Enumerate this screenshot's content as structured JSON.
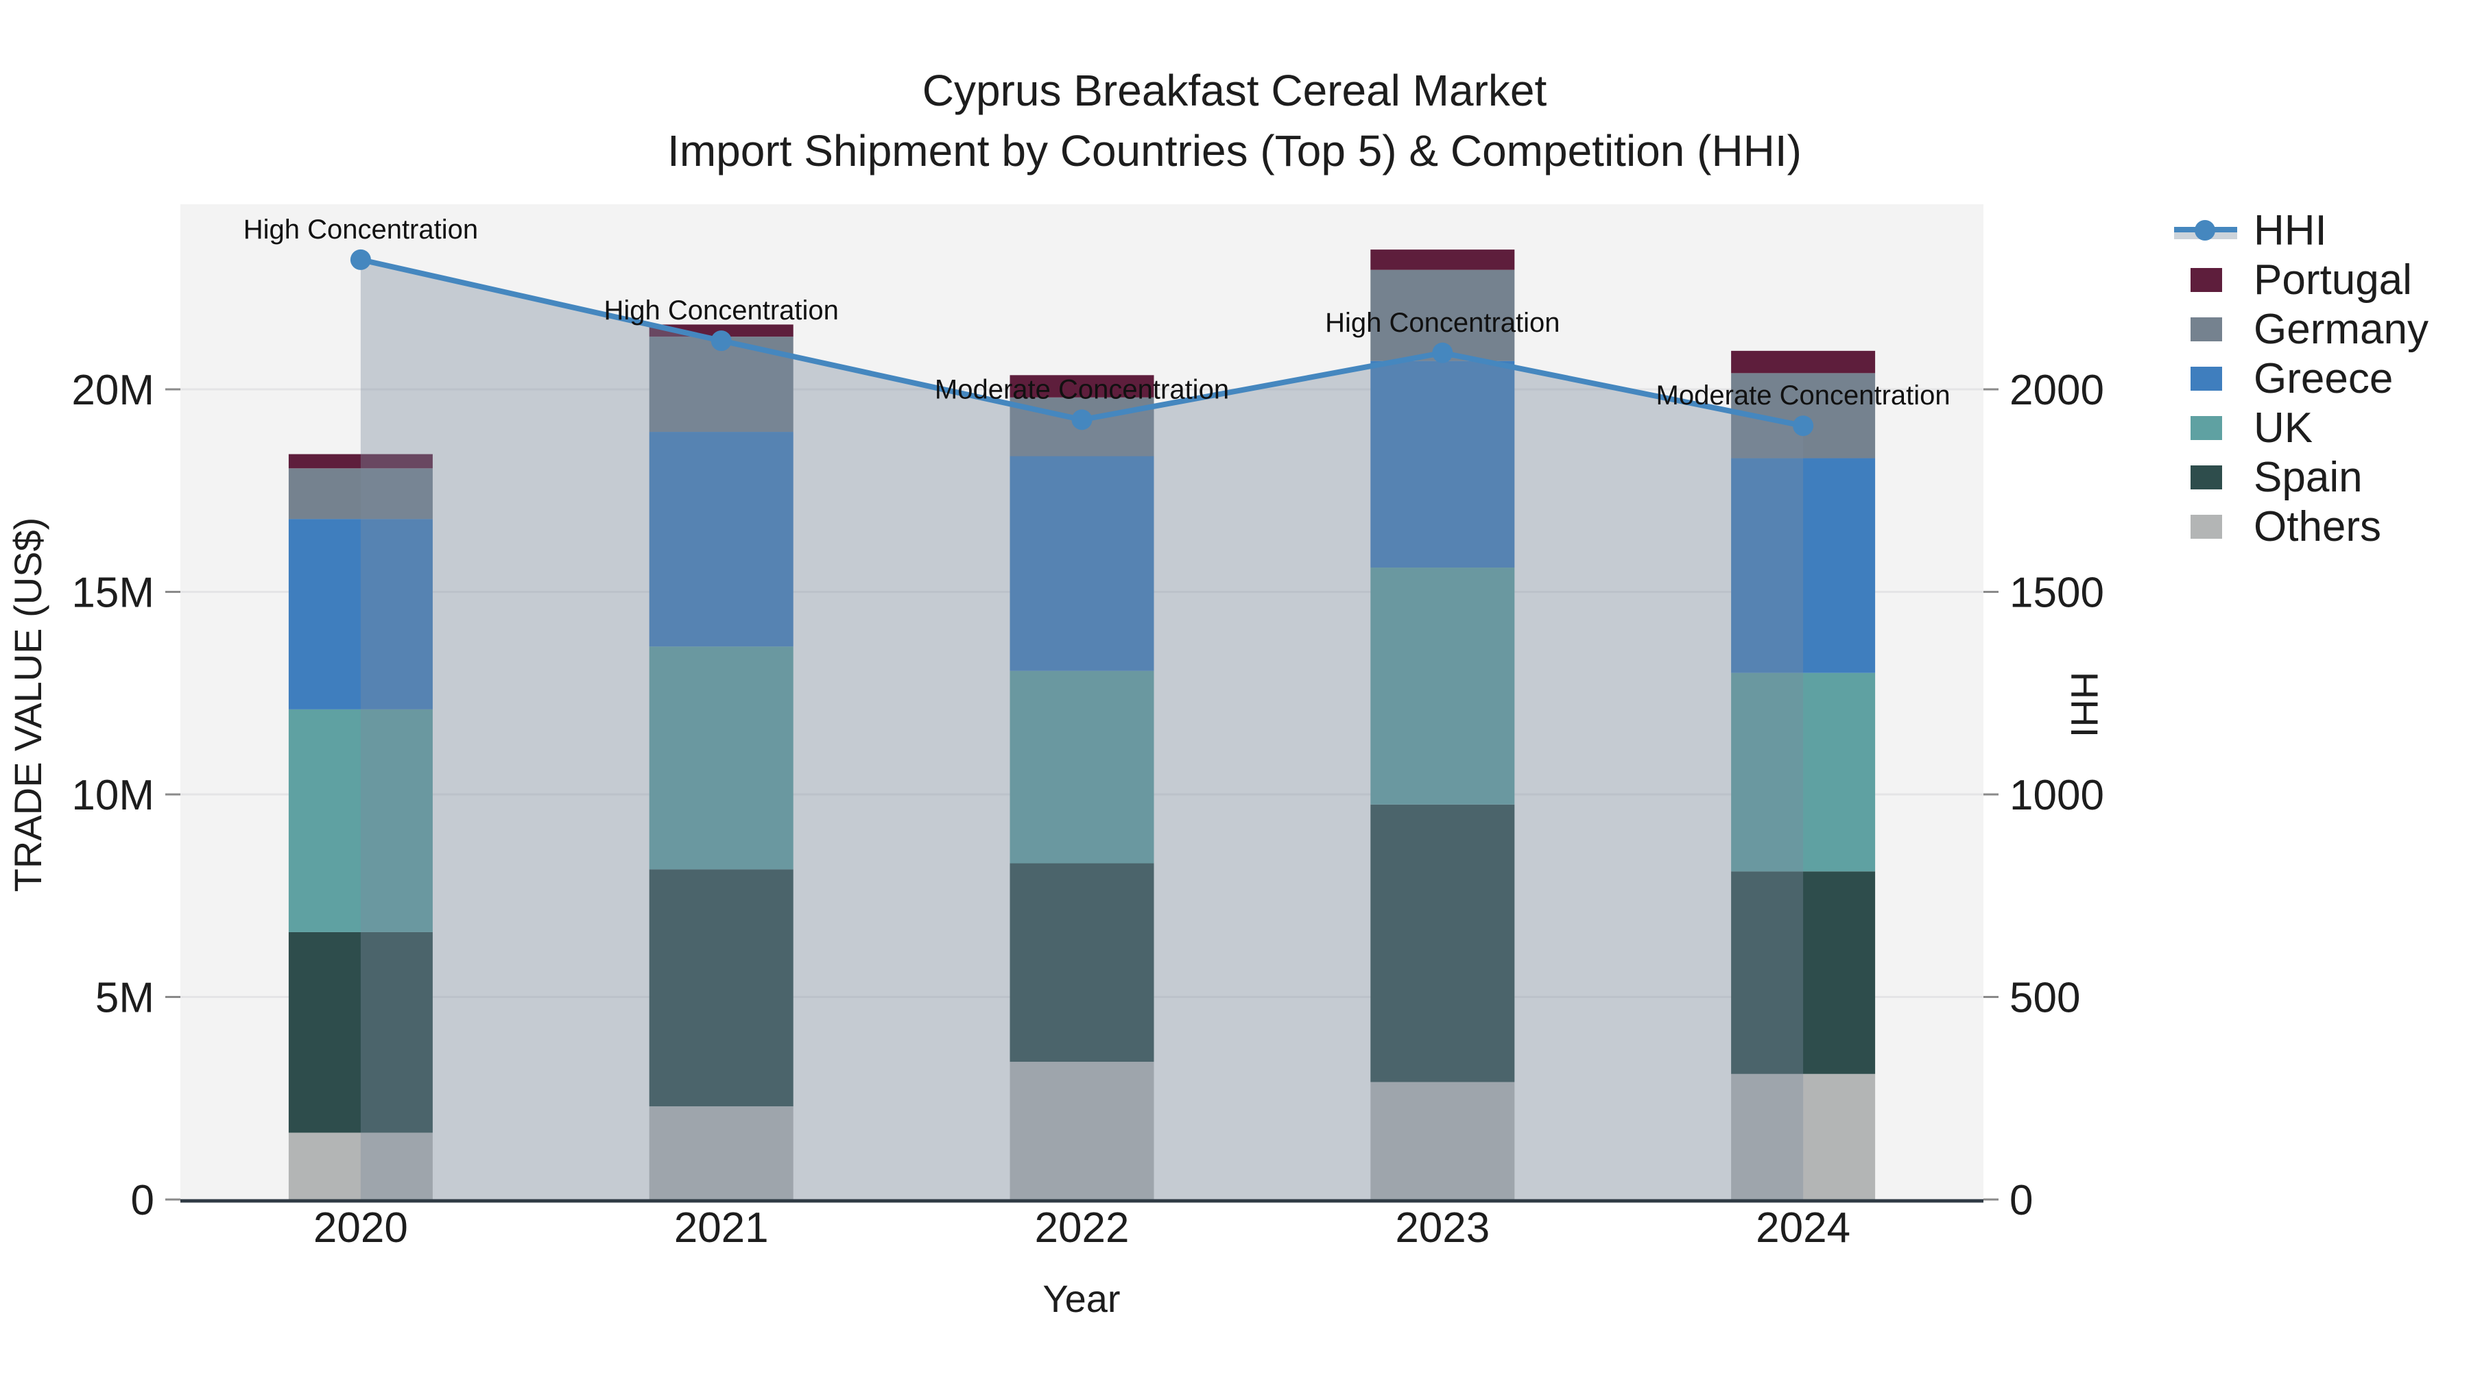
{
  "title": {
    "line1": "Cyprus Breakfast Cereal Market",
    "line2": "Import Shipment by Countries (Top 5) & Competition (HHI)"
  },
  "colors": {
    "plot_background": "#f3f3f3",
    "gridline": "#e4e4e6",
    "axis_line": "#2f3a44",
    "hhi_line": "#4587bf",
    "hhi_area_fill": "rgba(124,140,158,0.38)",
    "text": "#1d1d1d"
  },
  "chart_data": {
    "type": "bar+line",
    "title": "Cyprus Breakfast Cereal Market Import Shipment by Countries (Top 5) & Competition (HHI)",
    "xlabel": "Year",
    "ylabel_left": "TRADE VALUE (US$)",
    "ylabel_right": "HHI",
    "categories": [
      "2020",
      "2021",
      "2022",
      "2023",
      "2024"
    ],
    "stack_note": "stacked bar values in millions US$, listed bottom-to-top",
    "series": [
      {
        "name": "Others",
        "color": "#b3b5b5",
        "values": [
          1.65,
          2.3,
          3.4,
          2.9,
          3.1
        ]
      },
      {
        "name": "Spain",
        "color": "#2e4d4c",
        "values": [
          4.95,
          5.85,
          4.9,
          6.85,
          5.0
        ]
      },
      {
        "name": "UK",
        "color": "#5fa1a2",
        "values": [
          5.5,
          5.5,
          4.75,
          5.85,
          4.9
        ]
      },
      {
        "name": "Greece",
        "color": "#3f7ebe",
        "values": [
          4.7,
          5.3,
          5.3,
          5.1,
          5.3
        ]
      },
      {
        "name": "Germany",
        "color": "#75828f",
        "values": [
          1.25,
          2.35,
          1.45,
          2.25,
          2.1
        ]
      },
      {
        "name": "Portugal",
        "color": "#5e1e3c",
        "values": [
          0.35,
          0.3,
          0.55,
          0.5,
          0.55
        ]
      }
    ],
    "hhi": {
      "name": "HHI",
      "values": [
        2320,
        2120,
        1925,
        2090,
        1910
      ],
      "annotations": [
        "High Concentration",
        "High Concentration",
        "Moderate Concentration",
        "High Concentration",
        "Moderate Concentration"
      ]
    },
    "y_ticks_left": [
      {
        "label": "0",
        "value": 0
      },
      {
        "label": "5M",
        "value": 5
      },
      {
        "label": "10M",
        "value": 10
      },
      {
        "label": "15M",
        "value": 15
      },
      {
        "label": "20M",
        "value": 20
      }
    ],
    "y_ticks_right": [
      {
        "label": "0",
        "value": 0
      },
      {
        "label": "500",
        "value": 500
      },
      {
        "label": "1000",
        "value": 1000
      },
      {
        "label": "1500",
        "value": 1500
      },
      {
        "label": "2000",
        "value": 2000
      }
    ],
    "ylim_left_millions": [
      0,
      24.6
    ],
    "ylim_right_hhi": [
      0,
      2460
    ],
    "grid": true,
    "legend_position": "right",
    "legend": [
      {
        "label": "HHI",
        "type": "line",
        "color": "#4587bf"
      },
      {
        "label": "Portugal",
        "type": "bar",
        "color": "#5e1e3c"
      },
      {
        "label": "Germany",
        "type": "bar",
        "color": "#75828f"
      },
      {
        "label": "Greece",
        "type": "bar",
        "color": "#3f7ebe"
      },
      {
        "label": "UK",
        "type": "bar",
        "color": "#5fa1a2"
      },
      {
        "label": "Spain",
        "type": "bar",
        "color": "#2e4d4c"
      },
      {
        "label": "Others",
        "type": "bar",
        "color": "#b3b5b5"
      }
    ]
  }
}
